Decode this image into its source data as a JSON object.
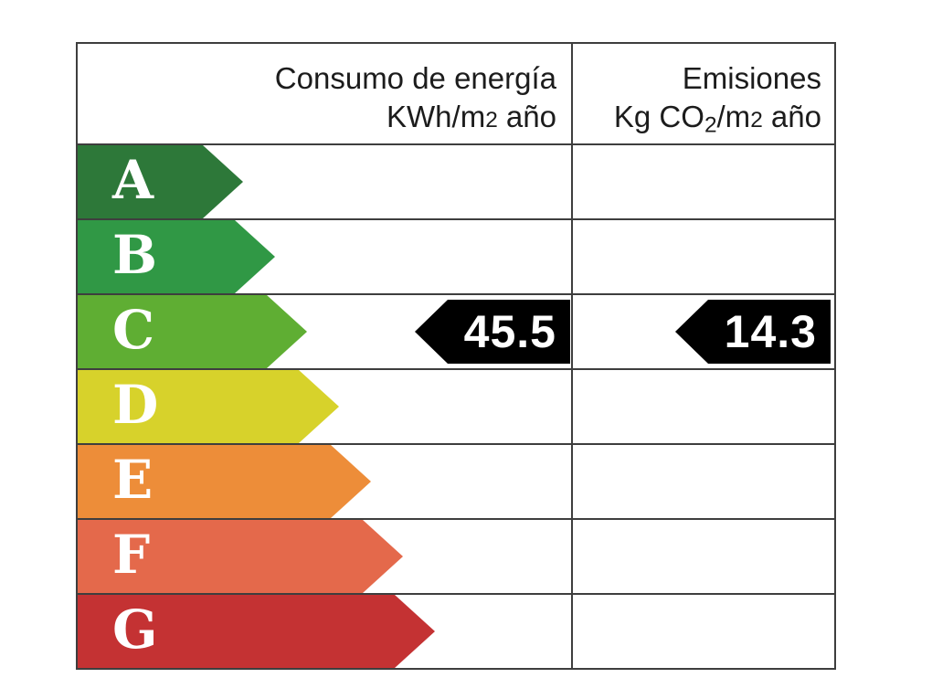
{
  "chart_data": {
    "type": "bar",
    "title": "",
    "categories": [
      "A",
      "B",
      "C",
      "D",
      "E",
      "F",
      "G"
    ],
    "series": [
      {
        "name": "Consumo de energía KWh/m2 año",
        "rating": "C",
        "value": 45.5
      },
      {
        "name": "Emisiones Kg CO2/m2 año",
        "rating": "C",
        "value": 14.3
      }
    ],
    "legend_position": "none",
    "grid": true
  },
  "table": {
    "header": {
      "consumption_title": "Consumo de energía",
      "consumption_unit": {
        "prefix": "KWh/m",
        "exp": "2",
        "suffix": " año"
      },
      "emissions_title": "Emisiones",
      "emissions_unit": {
        "prefix": "Kg CO",
        "sub": "2",
        "mid": "/m",
        "exp": "2",
        "suffix": " año"
      }
    },
    "ratings": [
      {
        "label": "A",
        "color": "#2d7839",
        "arrow_width": 181
      },
      {
        "label": "B",
        "color": "#309845",
        "arrow_width": 216
      },
      {
        "label": "C",
        "color": "#5fae33",
        "arrow_width": 251
      },
      {
        "label": "D",
        "color": "#d7d22b",
        "arrow_width": 286
      },
      {
        "label": "E",
        "color": "#ed8d39",
        "arrow_width": 321
      },
      {
        "label": "F",
        "color": "#e4694b",
        "arrow_width": 356
      },
      {
        "label": "G",
        "color": "#c43233",
        "arrow_width": 391
      }
    ],
    "values": {
      "consumption": {
        "value": "45.5",
        "rating": "C"
      },
      "emissions": {
        "value": "14.3",
        "rating": "C"
      }
    },
    "colors": {
      "border": "#3e3e3e",
      "value_arrow": "#000000",
      "value_text": "#ffffff",
      "letter_text": "#ffffff"
    }
  }
}
